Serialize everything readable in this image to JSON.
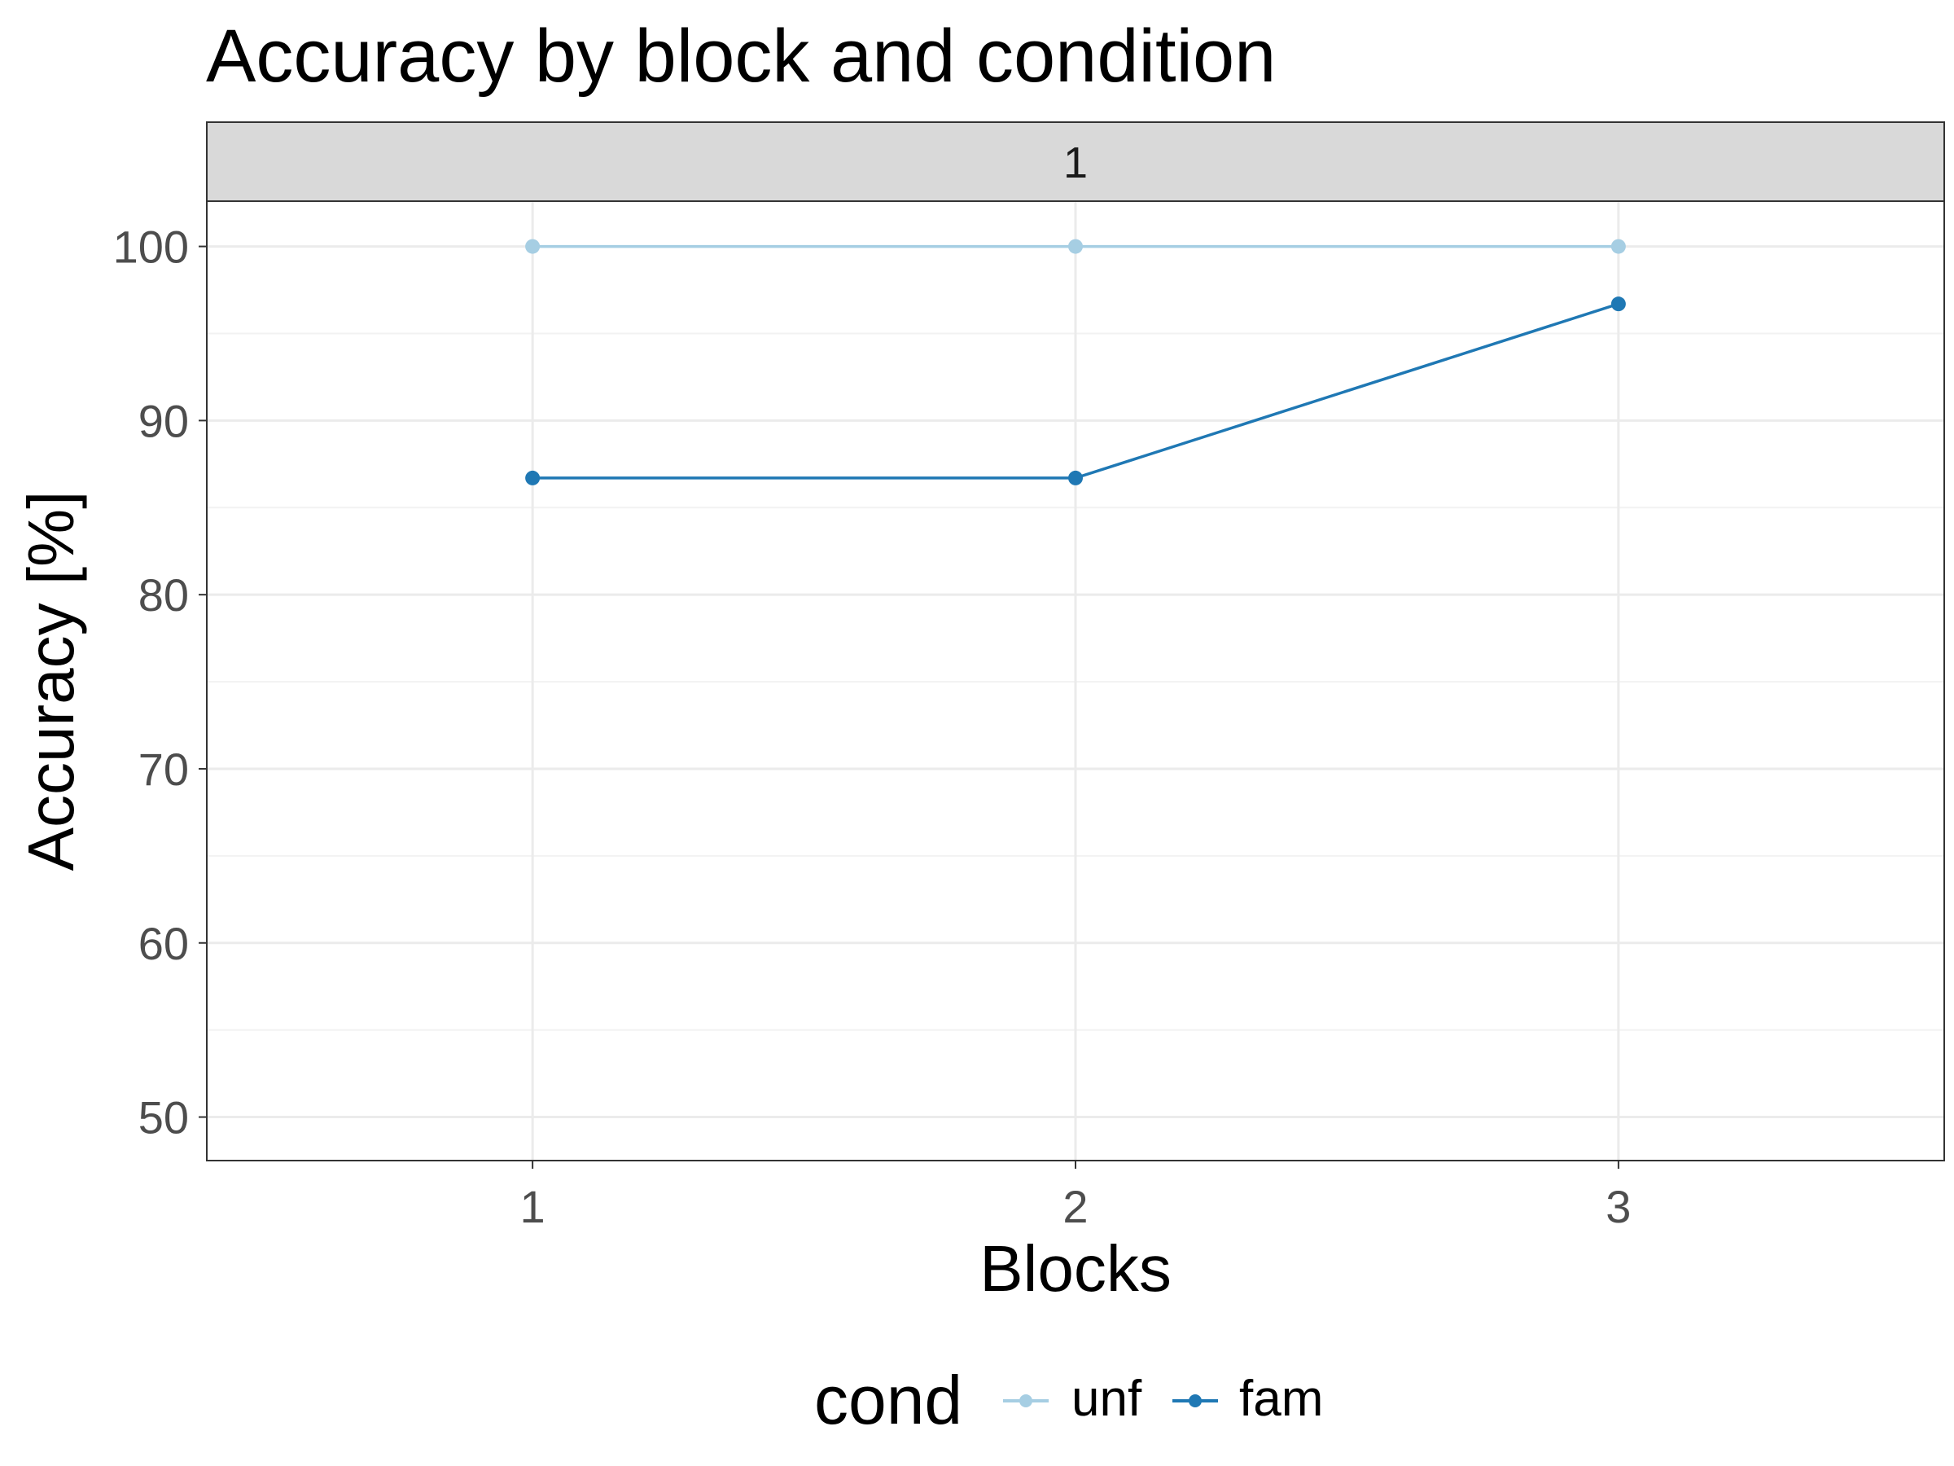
{
  "chart_data": {
    "type": "line",
    "title": "Accuracy by block and condition",
    "facet_label": "1",
    "xlabel": "Blocks",
    "ylabel": "Accuracy [%]",
    "x": [
      1,
      2,
      3
    ],
    "x_ticks": [
      1,
      2,
      3
    ],
    "xlim": [
      0.4,
      3.6
    ],
    "y_ticks": [
      50,
      60,
      70,
      80,
      90,
      100
    ],
    "ylim": [
      47.5,
      102.6
    ],
    "grid": true,
    "series": [
      {
        "name": "unf",
        "values": [
          100,
          100,
          100
        ],
        "color": "#a6cee3"
      },
      {
        "name": "fam",
        "values": [
          86.7,
          86.7,
          96.7
        ],
        "color": "#1f78b4"
      }
    ],
    "legend": {
      "title": "cond",
      "position": "bottom"
    }
  }
}
